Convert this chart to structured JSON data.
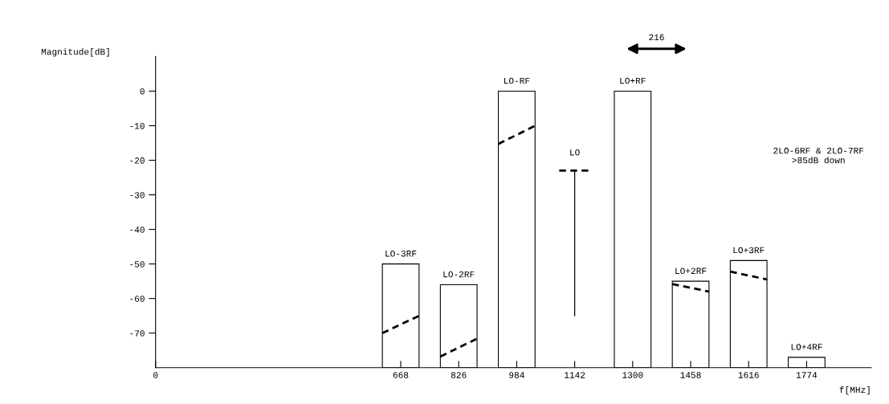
{
  "chart_data": {
    "type": "bar",
    "xlabel": "f[MHz]",
    "ylabel": "Magnitude[dB]",
    "series": [
      {
        "color": "#000000",
        "x": [
          668,
          826,
          984,
          1300,
          1458,
          1616,
          1774
        ],
        "base": [
          -80,
          -80,
          -80,
          -80,
          -80,
          -80,
          -80
        ],
        "values": [
          30,
          24,
          80,
          80,
          25,
          31,
          3
        ]
      },
      {
        "type": "line",
        "color": "#000000",
        "line_style": "dashed",
        "x": [
          618,
          718
        ],
        "values": [
          -70,
          -65
        ]
      },
      {
        "type": "line",
        "color": "#000000",
        "line_style": "dashed",
        "x": [
          776,
          876
        ],
        "values": [
          -76.8,
          -71.6
        ]
      },
      {
        "type": "line",
        "color": "#000000",
        "line_style": "dashed",
        "x": [
          934,
          1034
        ],
        "values": [
          -15.3,
          -10
        ]
      },
      {
        "type": "line",
        "color": "#000000",
        "line_style": "dashed",
        "x": [
          1100,
          1184
        ],
        "values": [
          -23,
          -23
        ]
      },
      {
        "type": "line",
        "color": "#000000",
        "line_style": "solid",
        "x": [
          1142,
          1142
        ],
        "values": [
          -65,
          -23
        ]
      },
      {
        "type": "line",
        "color": "#000000",
        "line_style": "dashed",
        "x": [
          1408,
          1508
        ],
        "values": [
          -55.8,
          -58
        ]
      },
      {
        "type": "line",
        "color": "#000000",
        "line_style": "dashed",
        "x": [
          1566,
          1666
        ],
        "values": [
          -52.2,
          -54.5
        ]
      }
    ],
    "xlim": [
      0,
      1950
    ],
    "ylim": [
      -80,
      10
    ],
    "xticks": [
      0,
      668,
      826,
      984,
      1142,
      1300,
      1458,
      1616,
      1774
    ],
    "yticks": [
      0,
      -10,
      -20,
      -30,
      -40,
      -50,
      -60,
      -70
    ],
    "annotations": [
      {
        "text": "LO-3RF",
        "x": 668,
        "y": -50
      },
      {
        "text": "LO-2RF",
        "x": 826,
        "y": -56
      },
      {
        "text": "LO-RF",
        "x": 984,
        "y": 0
      },
      {
        "text": "LO",
        "x": 1142,
        "y": -23
      },
      {
        "text": "LO+RF",
        "x": 1300,
        "y": 0
      },
      {
        "text": "LO+2RF",
        "x": 1458,
        "y": -55
      },
      {
        "text": "LO+3RF",
        "x": 1616,
        "y": -49
      },
      {
        "text": "LO+4RF",
        "x": 1774,
        "y": -77
      },
      "216",
      "2LO-6RF & 2LO-7RF\n>85dB down"
    ],
    "grid": false,
    "legend": false
  }
}
